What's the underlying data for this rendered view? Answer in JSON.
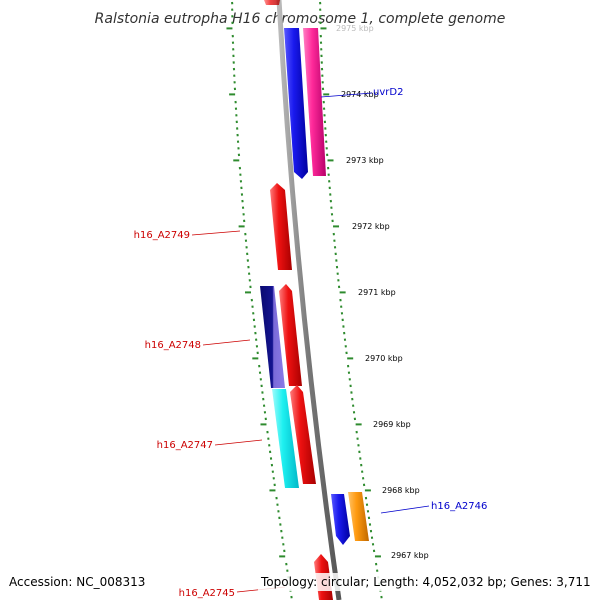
{
  "title": "Ralstonia eutropha H16 chromosome 1, complete genome",
  "footer": {
    "accession": "Accession: NC_008313",
    "topology": "Topology: circular; Length: 4,052,032 bp; Genes: 3,711"
  },
  "ruler_labels": [
    "2975 kbp",
    "2974 kbp",
    "2973 kbp",
    "2972 kbp",
    "2971 kbp",
    "2970 kbp",
    "2969 kbp",
    "2968 kbp",
    "2967 kbp"
  ],
  "gene_labels": {
    "uvrD2": "uvrD2",
    "h16_A2749": "h16_A2749",
    "h16_A2748": "h16_A2748",
    "h16_A2747": "h16_A2747",
    "h16_A2746": "h16_A2746",
    "h16_A2745": "h16_A2745"
  },
  "colors": {
    "backbone": "#888888",
    "tick": "#2e8b2e",
    "red_gene": "#ee1111",
    "blue_gene": "#1a1aee",
    "pink_gene": "#ff2a9a",
    "navy_gene": "#141490",
    "cyan_gene": "#1ef0f0",
    "orange_gene": "#ff9a10",
    "red_label": "#cc0000",
    "blue_label": "#0000cc"
  }
}
